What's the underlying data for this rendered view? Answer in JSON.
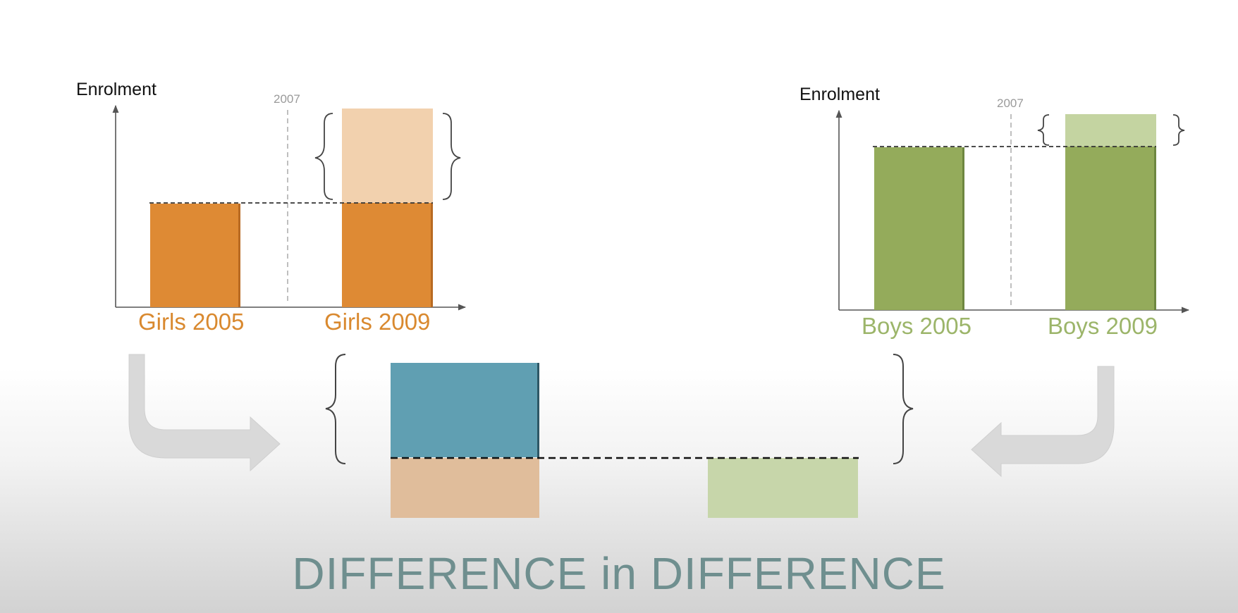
{
  "colors": {
    "girls": "#de8a34",
    "girls_light": "#f2d1ae",
    "boys": "#94ab5b",
    "boys_light": "#c4d4a1",
    "diff": "#609fb2",
    "girls_base": "#e0bd9b",
    "boys_base": "#c7d6aa",
    "title": "#6f8f8f"
  },
  "left_chart": {
    "y_label": "Enrolment",
    "year_marker": "2007",
    "bar1_label": "Girls 2005",
    "bar2_label": "Girls 2009"
  },
  "right_chart": {
    "y_label": "Enrolment",
    "year_marker": "2007",
    "bar1_label": "Boys 2005",
    "bar2_label": "Boys 2009"
  },
  "title": "DIFFERENCE in DIFFERENCE",
  "icons": {
    "left_arrow": "curved-arrow-right-icon",
    "right_arrow": "curved-arrow-left-icon"
  }
}
